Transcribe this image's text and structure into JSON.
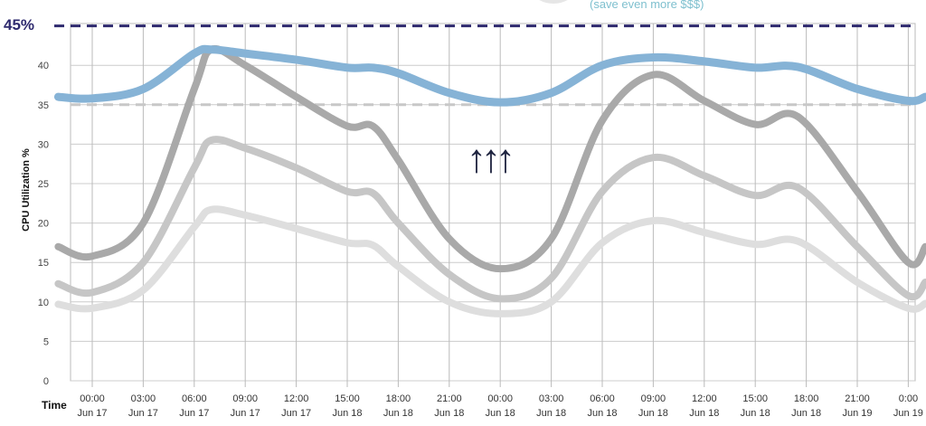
{
  "chart_data": {
    "type": "line",
    "title": "",
    "annotation": "(save even more $$$)",
    "xlabel": "Time",
    "ylabel": "CPU Utilization %",
    "ylim": [
      0,
      45
    ],
    "yticks": [
      0,
      5,
      10,
      15,
      20,
      25,
      30,
      35,
      40
    ],
    "grid": true,
    "x_tick_labels": [
      [
        "00:00",
        "Jun 17"
      ],
      [
        "03:00",
        "Jun 17"
      ],
      [
        "06:00",
        "Jun 17"
      ],
      [
        "09:00",
        "Jun 17"
      ],
      [
        "12:00",
        "Jun 17"
      ],
      [
        "15:00",
        "Jun 18"
      ],
      [
        "18:00",
        "Jun 18"
      ],
      [
        "21:00",
        "Jun 18"
      ],
      [
        "00:00",
        "Jun 18"
      ],
      [
        "03:00",
        "Jun 18"
      ],
      [
        "06:00",
        "Jun 18"
      ],
      [
        "09:00",
        "Jun 18"
      ],
      [
        "12:00",
        "Jun 18"
      ],
      [
        "15:00",
        "Jun 18"
      ],
      [
        "18:00",
        "Jun 18"
      ],
      [
        "21:00",
        "Jun 19"
      ],
      [
        "0:00",
        "Jun 19"
      ]
    ],
    "x_hours": [
      -2,
      0,
      3,
      6,
      7,
      9,
      12,
      15,
      16.5,
      18,
      21,
      24,
      27,
      30,
      33,
      36,
      39,
      41.5,
      45,
      48,
      49
    ],
    "reference_lines": [
      {
        "label": "45%",
        "value": 45,
        "color": "#2e2a6e"
      },
      {
        "value": 35,
        "color": "#c8c8c8"
      }
    ],
    "arrows": "↑↑↑",
    "series": [
      {
        "color": "#86b3d6",
        "values": [
          36,
          35.8,
          37,
          41.5,
          42,
          41.5,
          40.7,
          39.7,
          39.7,
          39,
          36.5,
          35.3,
          36.5,
          40,
          41,
          40.5,
          39.7,
          39.8,
          37,
          35.5,
          36
        ]
      },
      {
        "color": "#a9a9a9",
        "values": [
          17,
          15.8,
          20,
          37,
          42,
          40,
          36,
          32.3,
          32.3,
          28,
          18,
          14.2,
          18,
          33,
          38.8,
          35.5,
          32.5,
          33.5,
          24,
          15,
          17
        ]
      },
      {
        "color": "#c6c6c6",
        "values": [
          12.3,
          11.2,
          15,
          27,
          30.5,
          29.5,
          27,
          24,
          23.8,
          20,
          13.5,
          10.4,
          13,
          24,
          28.3,
          26,
          23.5,
          24.5,
          17,
          10.8,
          12.5
        ]
      },
      {
        "color": "#dedede",
        "values": [
          9.7,
          9.2,
          11.5,
          19.5,
          21.7,
          21,
          19.3,
          17.5,
          17.2,
          14.5,
          10,
          8.5,
          10,
          17.5,
          20.3,
          18.8,
          17.3,
          17.7,
          12.5,
          9.2,
          9.8
        ]
      }
    ]
  }
}
